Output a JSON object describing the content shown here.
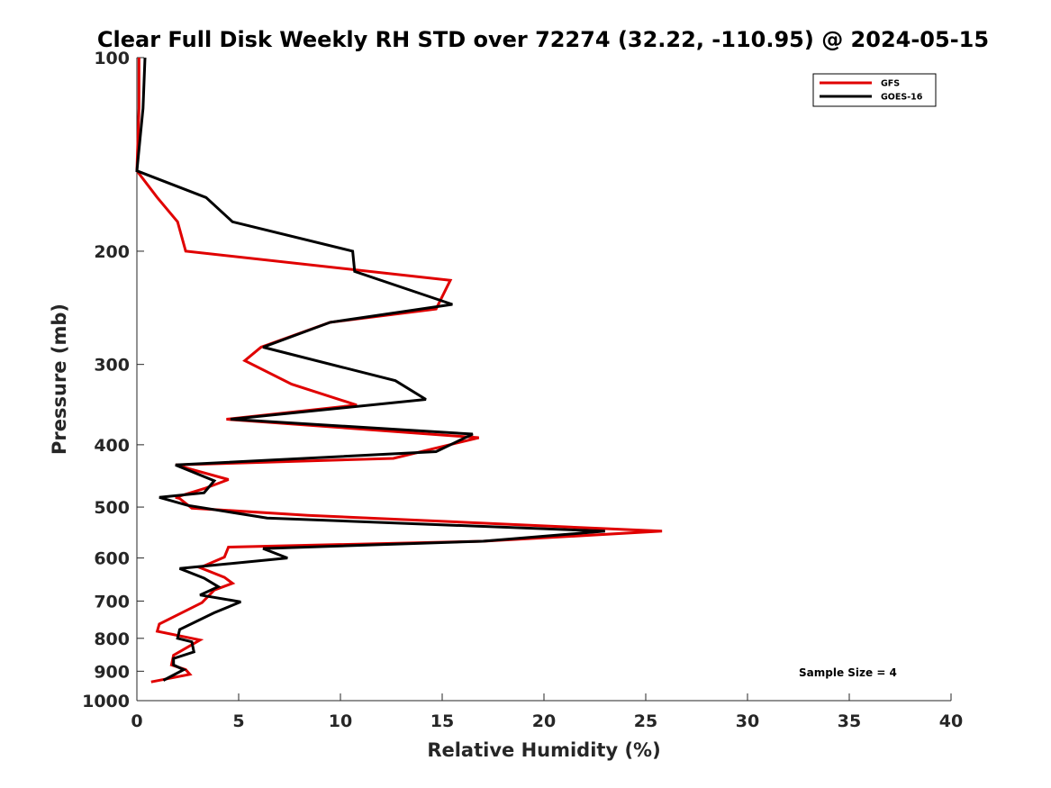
{
  "chart_data": {
    "type": "line",
    "title": "Clear Full Disk Weekly RH STD over 72274 (32.22, -110.95) @ 2024-05-15",
    "xlabel": "Relative Humidity (%)",
    "ylabel": "Pressure (mb)",
    "xlim": [
      0,
      40
    ],
    "ylim": [
      100,
      1000
    ],
    "yscale": "log",
    "y_reversed": true,
    "x_ticks": [
      "0",
      "5",
      "10",
      "15",
      "20",
      "25",
      "30",
      "35",
      "40"
    ],
    "y_ticks": [
      "100",
      "200",
      "300",
      "400",
      "500",
      "600",
      "700",
      "800",
      "900",
      "1000"
    ],
    "grid": false,
    "legend_position": "top-right",
    "annotation": "Sample Size = 4",
    "series": [
      {
        "name": "GFS",
        "color": "#e00000",
        "x": [
          0.1,
          0.1,
          0.0,
          1.0,
          2.0,
          2.4,
          15.4,
          14.7,
          9.5,
          6.1,
          5.3,
          7.6,
          10.8,
          4.4,
          16.8,
          12.6,
          1.9,
          4.5,
          3.3,
          1.9,
          2.1,
          2.7,
          8.4,
          25.8,
          17.0,
          4.5,
          4.3,
          3.1,
          4.3,
          4.7,
          3.8,
          3.2,
          1.1,
          1.0,
          3.1,
          1.8,
          1.7,
          2.4,
          2.6,
          0.7
        ],
        "y": [
          100,
          120,
          150,
          165,
          180,
          200,
          222,
          246,
          258,
          282,
          296,
          322,
          347,
          365,
          390,
          420,
          430,
          453,
          468,
          483,
          485,
          502,
          515,
          545,
          565,
          577,
          598,
          621,
          643,
          657,
          673,
          704,
          760,
          780,
          805,
          850,
          880,
          895,
          910,
          935
        ]
      },
      {
        "name": "GOES-16",
        "color": "#000000",
        "x": [
          0.4,
          0.3,
          0.0,
          3.4,
          4.7,
          10.6,
          10.7,
          15.5,
          9.5,
          6.2,
          12.7,
          14.2,
          4.6,
          16.5,
          14.7,
          1.9,
          3.8,
          3.3,
          1.1,
          2.5,
          6.4,
          23.0,
          17.0,
          6.2,
          7.4,
          2.1,
          3.3,
          4.0,
          3.1,
          5.1,
          3.8,
          2.1,
          2.0,
          2.7,
          2.8,
          1.8,
          1.8,
          2.3,
          1.3
        ],
        "y": [
          100,
          120,
          150,
          165,
          180,
          200,
          215,
          242,
          258,
          282,
          318,
          340,
          365,
          385,
          410,
          430,
          455,
          475,
          483,
          497,
          520,
          545,
          565,
          580,
          600,
          623,
          645,
          665,
          685,
          702,
          730,
          775,
          800,
          810,
          840,
          860,
          880,
          895,
          930
        ]
      }
    ]
  }
}
